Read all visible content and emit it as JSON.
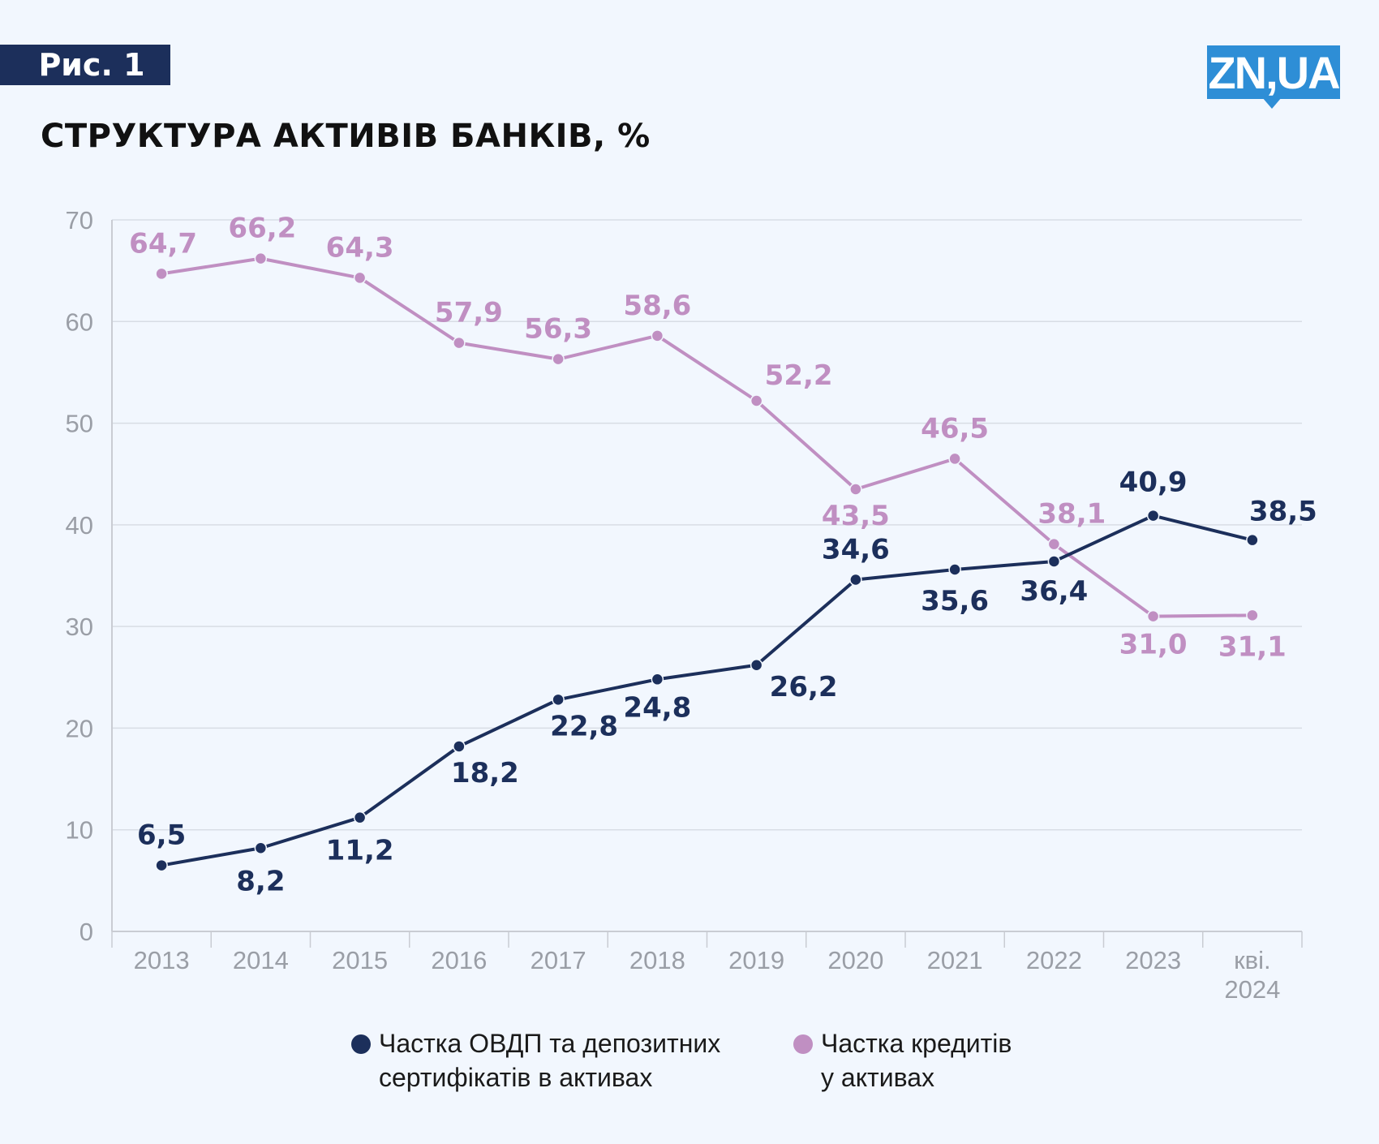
{
  "badge": "Рис. 1",
  "logo": "ZN,UA",
  "title": "СТРУКТУРА АКТИВІВ БАНКІВ, %",
  "colors": {
    "navy": "#1c2f5b",
    "lilac": "#c08fc2",
    "logo_blue": "#2e8ed6"
  },
  "chart_data": {
    "type": "line",
    "categories": [
      "2013",
      "2014",
      "2015",
      "2016",
      "2017",
      "2018",
      "2019",
      "2020",
      "2021",
      "2022",
      "2023",
      "кві.\n2024"
    ],
    "ylim": [
      0,
      70
    ],
    "yticks": [
      "0",
      "10",
      "20",
      "30",
      "40",
      "50",
      "60",
      "70"
    ],
    "grid": true,
    "legend_position": "bottom",
    "series": [
      {
        "name": "Частка ОВДП та депозитних\nсертифікатів в активах",
        "color": "#1c2f5b",
        "values": [
          6.5,
          8.2,
          11.2,
          18.2,
          22.8,
          24.8,
          26.2,
          34.6,
          35.6,
          36.4,
          40.9,
          38.5
        ],
        "labels": [
          "6,5",
          "8,2",
          "11,2",
          "18,2",
          "22,8",
          "24,8",
          "26,2",
          "34,6",
          "35,6",
          "36,4",
          "40,9",
          "38,5"
        ]
      },
      {
        "name": "Частка кредитів\nу активах",
        "color": "#c08fc2",
        "values": [
          64.7,
          66.2,
          64.3,
          57.9,
          56.3,
          58.6,
          52.2,
          43.5,
          46.5,
          38.1,
          31.0,
          31.1
        ],
        "labels": [
          "64,7",
          "66,2",
          "64,3",
          "57,9",
          "56,3",
          "58,6",
          "52,2",
          "43,5",
          "46,5",
          "38,1",
          "31,0",
          "31,1"
        ]
      }
    ]
  }
}
